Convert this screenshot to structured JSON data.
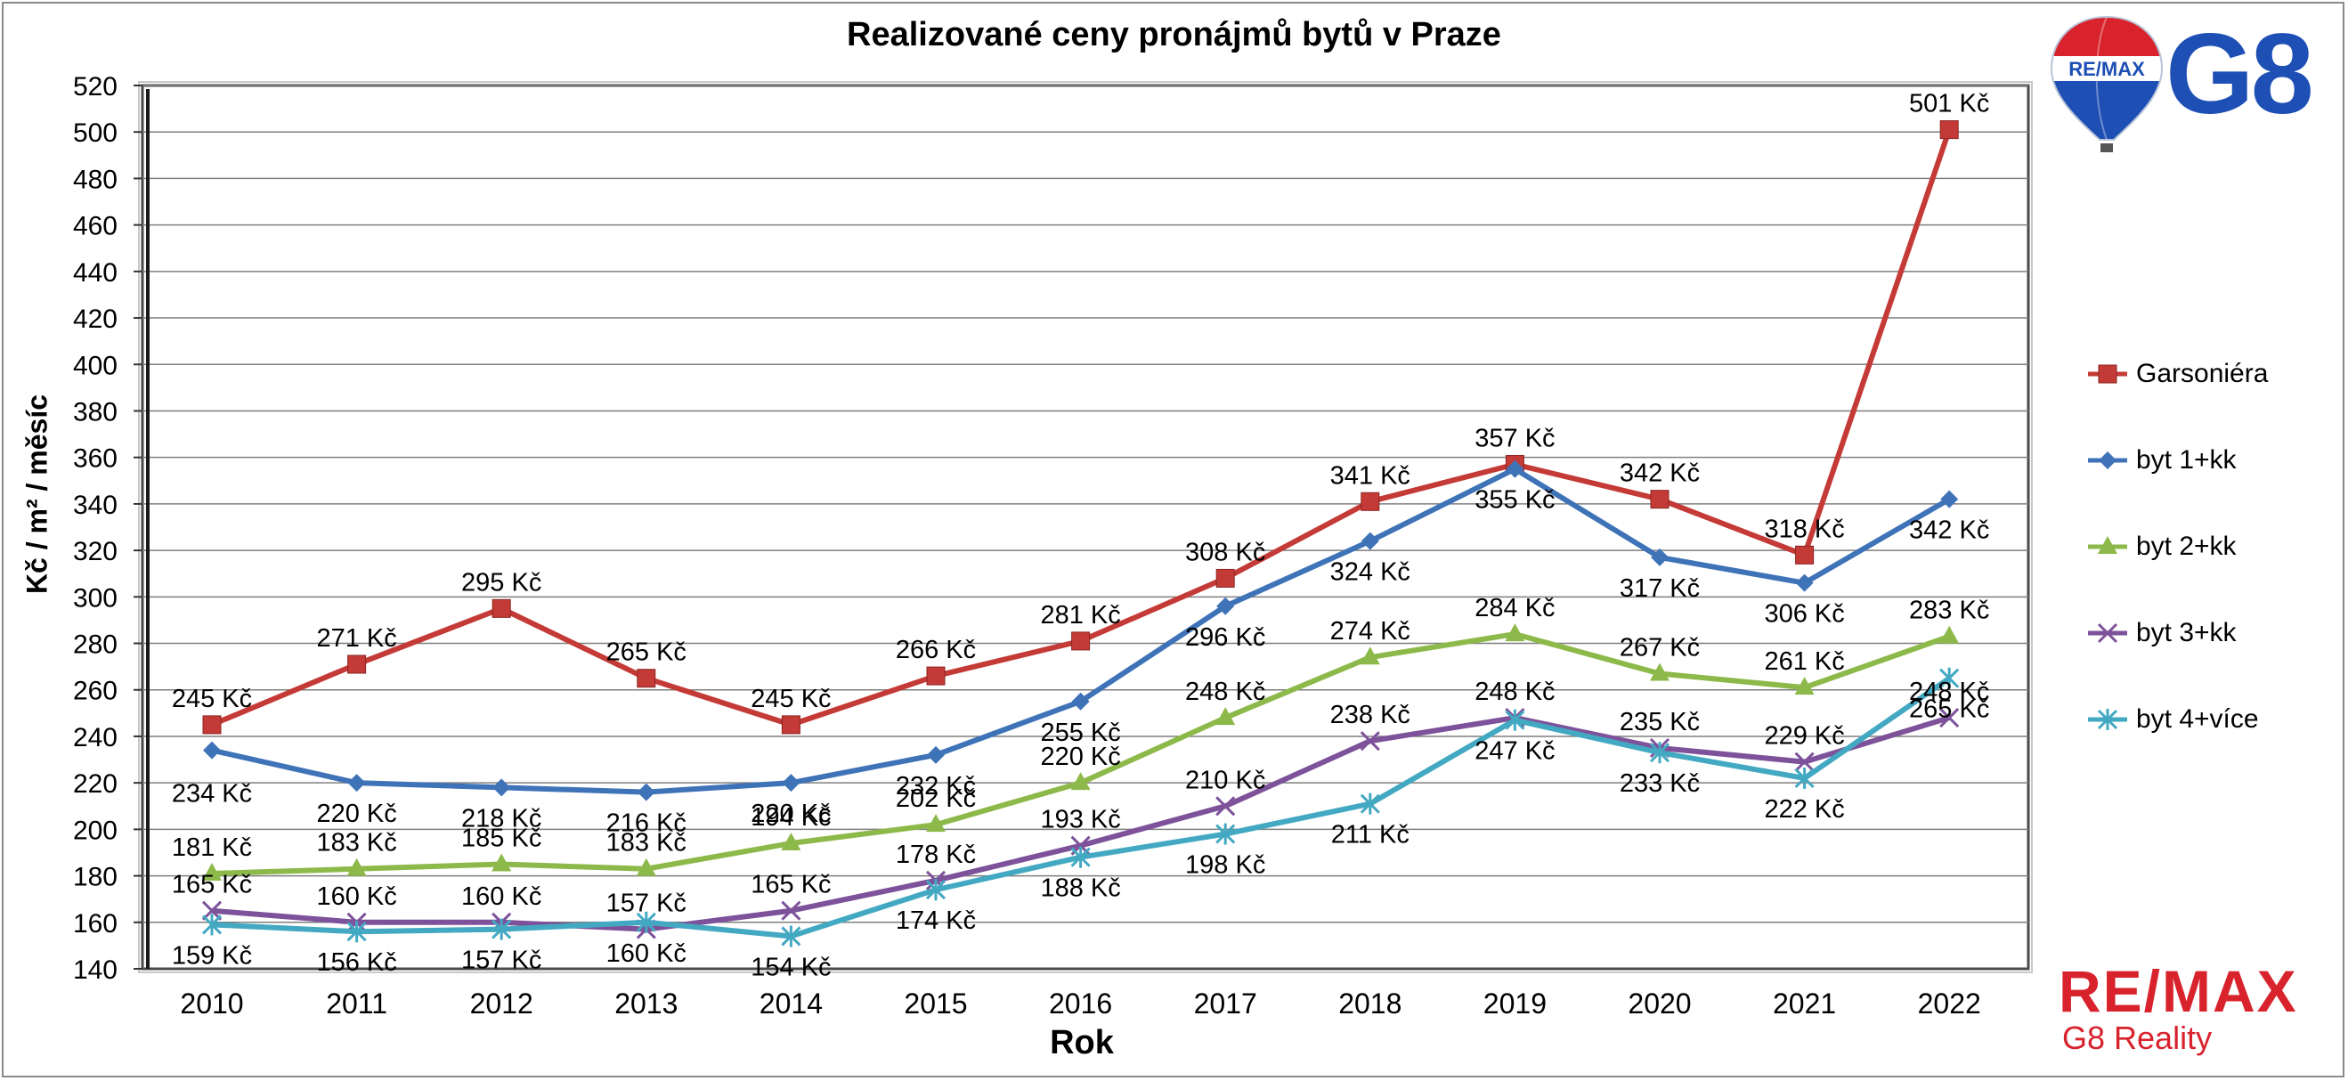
{
  "chart_data": {
    "type": "line",
    "title": "Realizované ceny pronájmů bytů v Praze",
    "xlabel": "Rok",
    "ylabel": "Kč / m² / měsíc",
    "ylim": [
      140,
      520
    ],
    "yticks": [
      140,
      160,
      180,
      200,
      220,
      240,
      260,
      280,
      300,
      320,
      340,
      360,
      380,
      400,
      420,
      440,
      460,
      480,
      500,
      520
    ],
    "grid": true,
    "legend_position": "right",
    "categories": [
      "2010",
      "2011",
      "2012",
      "2013",
      "2014",
      "2015",
      "2016",
      "2017",
      "2018",
      "2019",
      "2020",
      "2021",
      "2022"
    ],
    "value_suffix": " Kč",
    "series": [
      {
        "name": "Garsoniéra",
        "color": "#c43a36",
        "marker": "square",
        "values": [
          245,
          271,
          295,
          265,
          245,
          266,
          281,
          308,
          341,
          357,
          342,
          318,
          501
        ]
      },
      {
        "name": "byt 1+kk",
        "color": "#3f73b8",
        "marker": "diamond",
        "values": [
          234,
          220,
          218,
          216,
          220,
          232,
          255,
          296,
          324,
          355,
          317,
          306,
          342
        ]
      },
      {
        "name": "byt 2+kk",
        "color": "#8db94a",
        "marker": "triangle",
        "values": [
          181,
          183,
          185,
          183,
          194,
          202,
          220,
          248,
          274,
          284,
          267,
          261,
          283
        ]
      },
      {
        "name": "byt 3+kk",
        "color": "#7d529a",
        "marker": "x",
        "values": [
          165,
          160,
          160,
          157,
          165,
          178,
          193,
          210,
          238,
          248,
          235,
          229,
          248
        ]
      },
      {
        "name": "byt 4+více",
        "color": "#43a9c2",
        "marker": "star",
        "values": [
          159,
          156,
          157,
          160,
          154,
          174,
          188,
          198,
          211,
          247,
          233,
          222,
          265
        ]
      }
    ]
  },
  "logos": {
    "balloon_text": "RE/MAX",
    "g8_text": "G8",
    "remax_text": "RE/MAX",
    "reality_text": "G8 Reality",
    "brand_red": "#d8222c",
    "brand_blue": "#1e4fb4"
  }
}
